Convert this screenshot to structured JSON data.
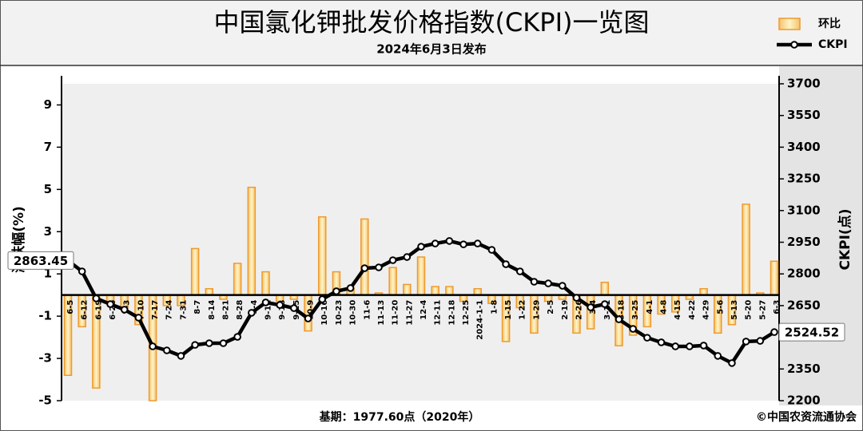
{
  "chart_data": {
    "type": "bar",
    "title": "中国氯化钾批发价格指数(CKPI)一览图",
    "subtitle": "2024年6月3日发布",
    "y_label": "涨跌幅(%)",
    "y2_label": "CKPI(点)",
    "base_note": "基期：1977.60点（2020年）",
    "source": "©中国农资流通协会",
    "legend": "top-right",
    "categories": [
      "6-5",
      "6-12",
      "6-19",
      "6-26",
      "7-3",
      "7-10",
      "7-17",
      "7-24",
      "7-31",
      "8-7",
      "8-14",
      "8-21",
      "8-28",
      "9-4",
      "9-11",
      "9-18",
      "9-25",
      "10-9",
      "10-16",
      "10-23",
      "10-30",
      "11-6",
      "11-13",
      "11-20",
      "11-27",
      "12-4",
      "12-11",
      "12-18",
      "12-25",
      "2024-1-1",
      "1-8",
      "1-15",
      "1-22",
      "1-29",
      "2-5",
      "2-19",
      "2-26",
      "3-4",
      "3-11",
      "3-18",
      "3-25",
      "4-1",
      "4-8",
      "4-15",
      "4-22",
      "4-29",
      "5-6",
      "5-13",
      "5-20",
      "5-27",
      "6-3"
    ],
    "series": [
      {
        "name": "环比",
        "type": "bar",
        "axis": "y",
        "color": "#ee9a2e",
        "values": [
          -3.8,
          -1.5,
          -4.4,
          -0.4,
          -0.6,
          -1.4,
          -5.0,
          -0.5,
          -0.5,
          2.2,
          0.3,
          -0.2,
          1.5,
          5.1,
          1.1,
          -0.3,
          -0.2,
          -1.7,
          3.7,
          1.1,
          0.3,
          3.6,
          0.1,
          1.3,
          0.5,
          1.8,
          0.4,
          0.4,
          -0.3,
          0.3,
          -0.4,
          -2.2,
          -0.6,
          -1.8,
          -0.3,
          -0.2,
          -1.8,
          -1.6,
          0.6,
          -2.4,
          -1.9,
          -1.5,
          -0.9,
          -0.8,
          -0.2,
          0.3,
          -1.8,
          -1.4,
          4.3,
          0.1,
          1.6
        ]
      },
      {
        "name": "CKPI",
        "type": "line",
        "axis": "y2",
        "color": "#000000",
        "values": [
          2863.45,
          2812,
          2684,
          2657,
          2631,
          2593,
          2457,
          2438,
          2412,
          2464,
          2472,
          2472,
          2502,
          2616,
          2665,
          2653,
          2638,
          2589,
          2680,
          2718,
          2733,
          2827,
          2831,
          2865,
          2880,
          2929,
          2944,
          2956,
          2940,
          2944,
          2914,
          2846,
          2812,
          2763,
          2755,
          2744,
          2687,
          2642,
          2657,
          2585,
          2540,
          2498,
          2476,
          2457,
          2457,
          2461,
          2412,
          2378,
          2480,
          2483,
          2524.52
        ],
        "value_labels": [
          "2863.45",
          null,
          null,
          null,
          null,
          null,
          null,
          null,
          null,
          null,
          null,
          null,
          null,
          null,
          null,
          null,
          null,
          null,
          null,
          null,
          null,
          null,
          null,
          null,
          null,
          null,
          null,
          null,
          null,
          null,
          null,
          null,
          null,
          null,
          null,
          null,
          null,
          null,
          null,
          null,
          null,
          null,
          null,
          null,
          null,
          null,
          null,
          null,
          null,
          null,
          "2524.52"
        ]
      }
    ],
    "ylim": [
      -5,
      10
    ],
    "yticks": [
      -5,
      -3,
      -1,
      1,
      3,
      5,
      7,
      9
    ],
    "y2lim": [
      2200,
      3700
    ],
    "y2ticks": [
      2200,
      2350,
      2500,
      2650,
      2800,
      2950,
      3100,
      3250,
      3400,
      3550,
      3700
    ]
  }
}
